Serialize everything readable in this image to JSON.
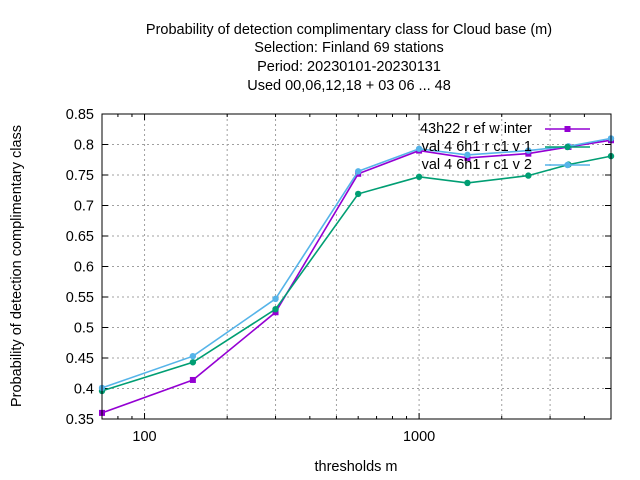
{
  "chart_data": {
    "type": "line",
    "title_lines": [
      "Probability of detection complimentary class  for Cloud base (m)",
      "Selection: Finland     69 stations",
      "Period: 20230101-20230131",
      "Used  00,06,12,18  + 03 06 ... 48"
    ],
    "xlabel": "thresholds m",
    "ylabel": "Probability of detection complimentary class",
    "x_scale": "log",
    "xlim": [
      70,
      5000
    ],
    "ylim": [
      0.35,
      0.85
    ],
    "x_tick_labels": [
      "100",
      "1000"
    ],
    "y_tick_labels": [
      "0.35",
      "0.4",
      "0.45",
      "0.5",
      "0.55",
      "0.6",
      "0.65",
      "0.7",
      "0.75",
      "0.8",
      "0.85"
    ],
    "grid": true,
    "legend_position": "top-right",
    "x": [
      70,
      150,
      300,
      600,
      1000,
      1500,
      2500,
      3500,
      5000
    ],
    "series": [
      {
        "name": "43h22_ref_winter",
        "legend_text": "43h22 r ef w inter",
        "color": "#9400d3",
        "marker": "square",
        "values": [
          0.36,
          0.414,
          0.525,
          0.752,
          0.79,
          0.778,
          0.785,
          0.796,
          0.807
        ]
      },
      {
        "name": "val_46h1_rc1_v1",
        "legend_text": "val 4 6h1 r c1 v 1",
        "color": "#009e73",
        "marker": "circle",
        "values": [
          0.396,
          0.443,
          0.53,
          0.719,
          0.747,
          0.737,
          0.749,
          0.767,
          0.781
        ]
      },
      {
        "name": "val_46h1_rc1_v2",
        "legend_text": "val 4 6h1 r c1 v 2",
        "color": "#56b4e9",
        "marker": "circle",
        "values": [
          0.401,
          0.453,
          0.547,
          0.756,
          0.793,
          0.783,
          0.79,
          0.797,
          0.81
        ]
      }
    ]
  }
}
